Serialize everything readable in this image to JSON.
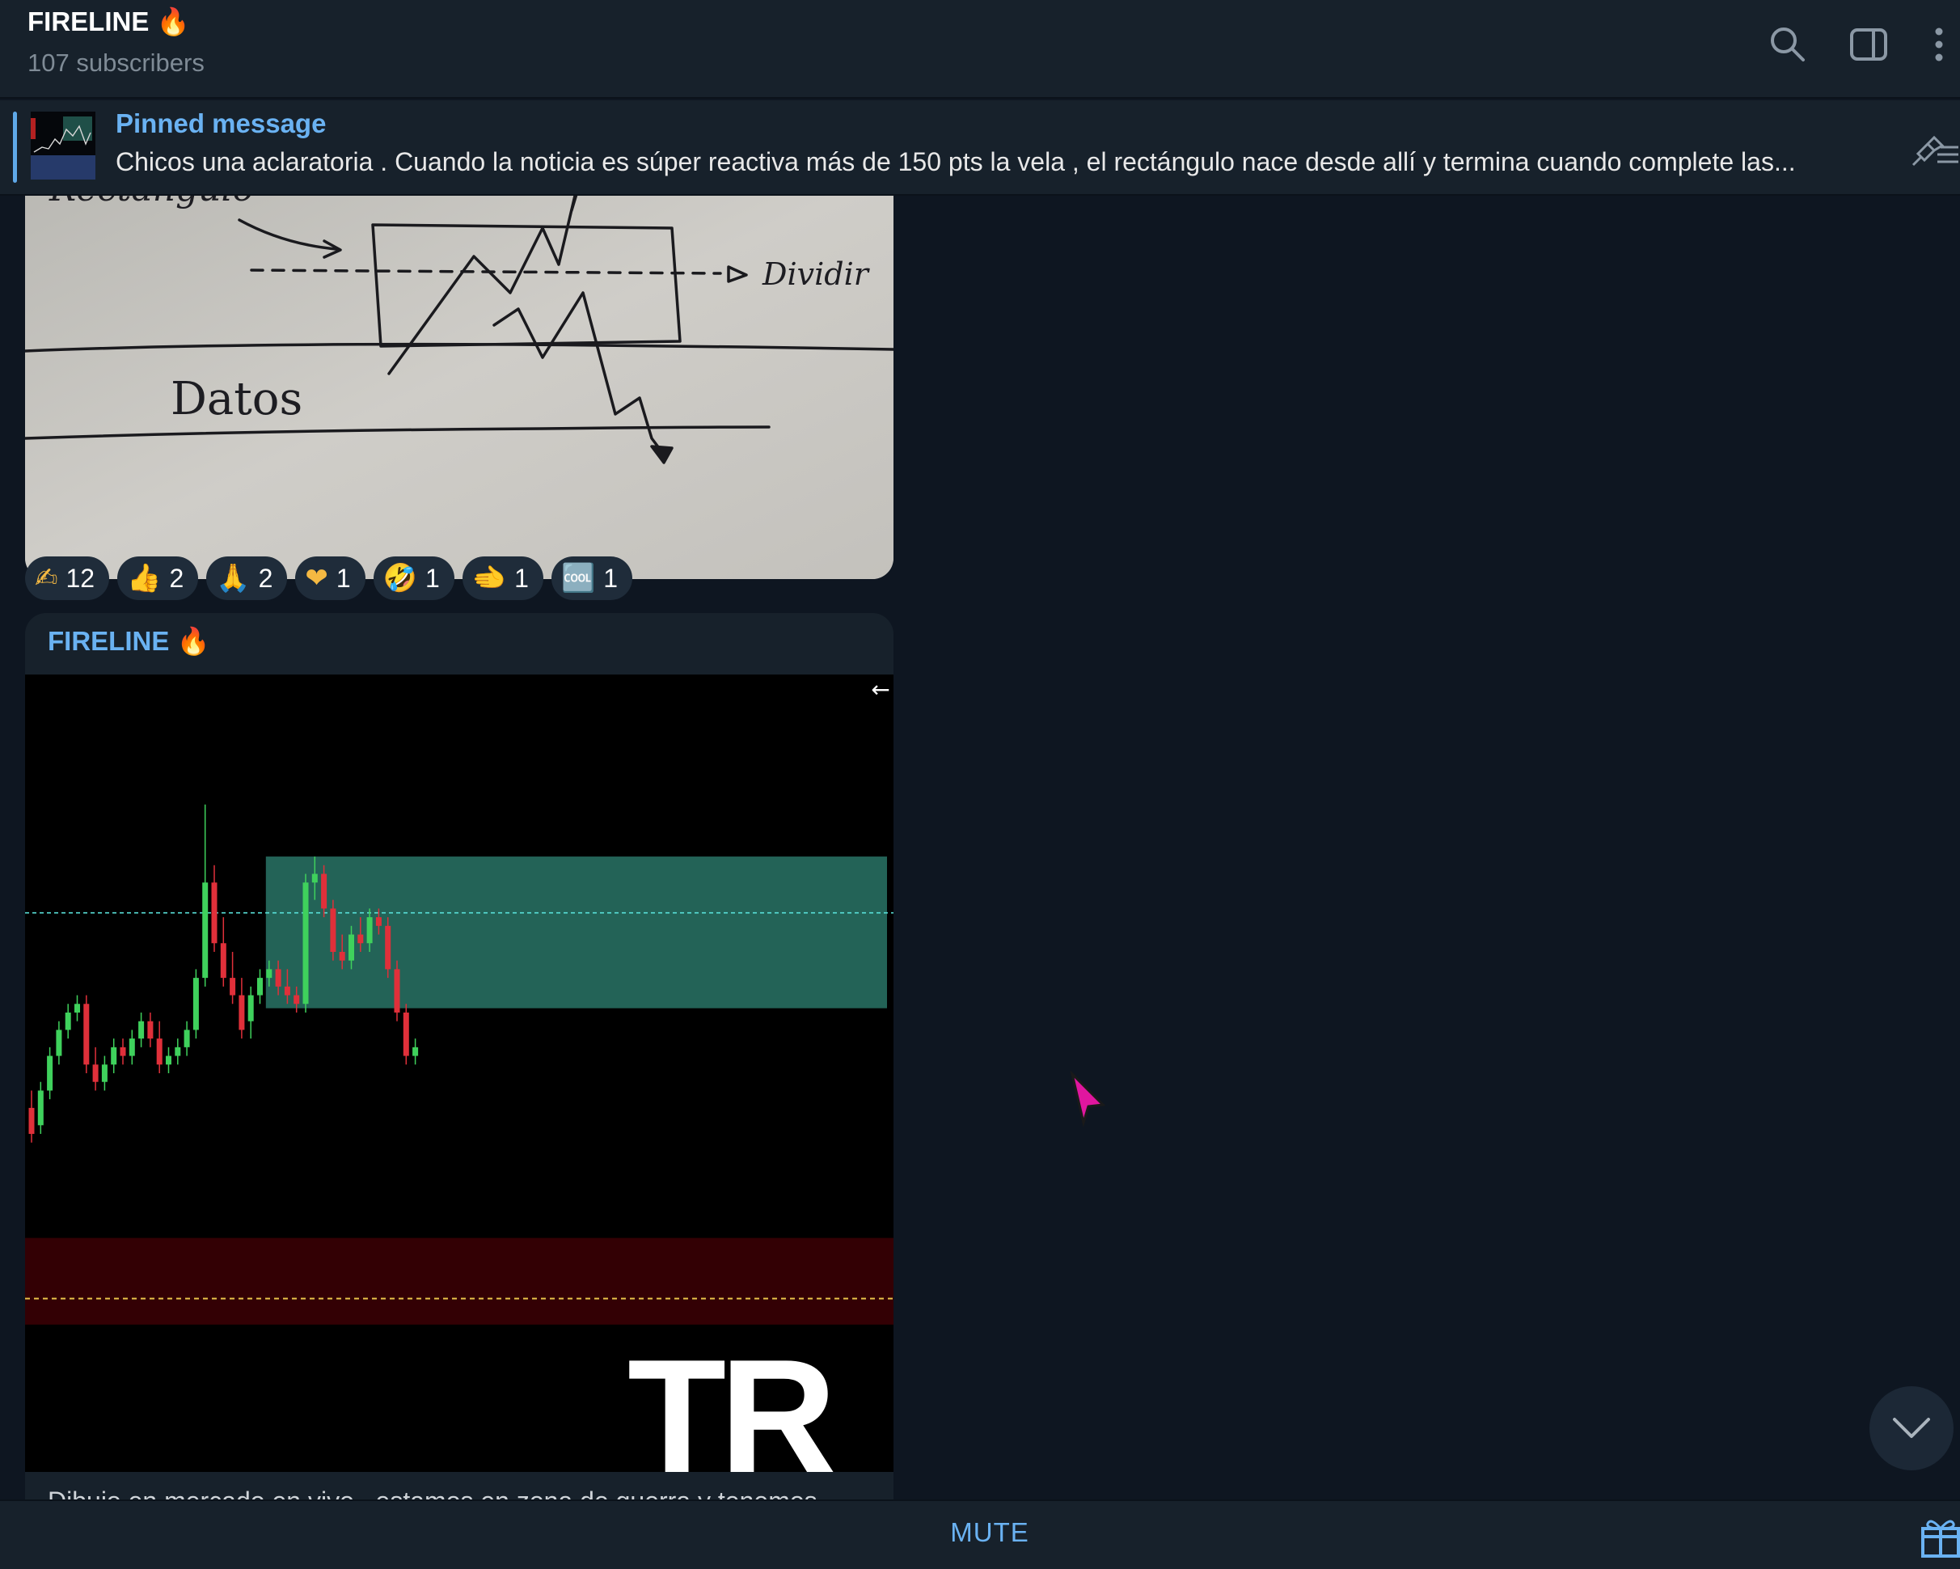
{
  "channel": {
    "title": "FIRELINE 🔥",
    "subscribers": "107 subscribers"
  },
  "header_icons": [
    "search-icon",
    "sidebar-toggle-icon",
    "more-vertical-icon"
  ],
  "pinned": {
    "label": "Pinned message",
    "text": "Chicos una aclaratoria .  Cuando la noticia es súper reactiva más de 150 pts la vela , el rectángulo nace desde allí y termina cuando complete las..."
  },
  "photo_sketch": {
    "word_rectangle": "Rectangulo",
    "word_dividir": "Dividir",
    "word_datos": "Datos"
  },
  "reactions": [
    {
      "emoji": "✍",
      "count": "12"
    },
    {
      "emoji": "👍",
      "count": "2"
    },
    {
      "emoji": "🙏",
      "count": "2"
    },
    {
      "emoji": "❤",
      "count": "1"
    },
    {
      "emoji": "🤣",
      "count": "1"
    },
    {
      "emoji": "🫲",
      "count": "1"
    },
    {
      "emoji": "🆒",
      "count": "1"
    }
  ],
  "message": {
    "author": "FIRELINE 🔥",
    "caption": "Dibujo en mercado en vivo , estamos en zona de guerra y tenemos ...",
    "watermark": "TR",
    "back_arrow": "←"
  },
  "chart_data": {
    "type": "candlestick",
    "title": "",
    "candles": [
      {
        "o": 62,
        "h": 64,
        "l": 58,
        "c": 59
      },
      {
        "o": 60,
        "h": 65,
        "l": 59,
        "c": 64
      },
      {
        "o": 64,
        "h": 69,
        "l": 63,
        "c": 68
      },
      {
        "o": 68,
        "h": 72,
        "l": 67,
        "c": 71
      },
      {
        "o": 71,
        "h": 74,
        "l": 70,
        "c": 73
      },
      {
        "o": 73,
        "h": 75,
        "l": 72,
        "c": 74
      },
      {
        "o": 74,
        "h": 75,
        "l": 66,
        "c": 67
      },
      {
        "o": 67,
        "h": 69,
        "l": 64,
        "c": 65
      },
      {
        "o": 65,
        "h": 68,
        "l": 64,
        "c": 67
      },
      {
        "o": 67,
        "h": 70,
        "l": 66,
        "c": 69
      },
      {
        "o": 69,
        "h": 70,
        "l": 67,
        "c": 68
      },
      {
        "o": 68,
        "h": 71,
        "l": 67,
        "c": 70
      },
      {
        "o": 70,
        "h": 73,
        "l": 69,
        "c": 72
      },
      {
        "o": 72,
        "h": 73,
        "l": 69,
        "c": 70
      },
      {
        "o": 70,
        "h": 72,
        "l": 66,
        "c": 67
      },
      {
        "o": 67,
        "h": 69,
        "l": 66,
        "c": 68
      },
      {
        "o": 68,
        "h": 70,
        "l": 67,
        "c": 69
      },
      {
        "o": 69,
        "h": 72,
        "l": 68,
        "c": 71
      },
      {
        "o": 71,
        "h": 78,
        "l": 70,
        "c": 77
      },
      {
        "o": 77,
        "h": 97,
        "l": 76,
        "c": 88
      },
      {
        "o": 88,
        "h": 90,
        "l": 80,
        "c": 81
      },
      {
        "o": 81,
        "h": 84,
        "l": 76,
        "c": 77
      },
      {
        "o": 77,
        "h": 80,
        "l": 74,
        "c": 75
      },
      {
        "o": 75,
        "h": 77,
        "l": 70,
        "c": 71
      },
      {
        "o": 72,
        "h": 76,
        "l": 70,
        "c": 75
      },
      {
        "o": 75,
        "h": 78,
        "l": 74,
        "c": 77
      },
      {
        "o": 77,
        "h": 79,
        "l": 76,
        "c": 78
      },
      {
        "o": 78,
        "h": 79,
        "l": 75,
        "c": 76
      },
      {
        "o": 76,
        "h": 78,
        "l": 74,
        "c": 75
      },
      {
        "o": 75,
        "h": 76,
        "l": 73,
        "c": 74
      },
      {
        "o": 74,
        "h": 89,
        "l": 73,
        "c": 88
      },
      {
        "o": 88,
        "h": 91,
        "l": 86,
        "c": 89
      },
      {
        "o": 89,
        "h": 90,
        "l": 84,
        "c": 85
      },
      {
        "o": 85,
        "h": 86,
        "l": 79,
        "c": 80
      },
      {
        "o": 80,
        "h": 82,
        "l": 78,
        "c": 79
      },
      {
        "o": 79,
        "h": 83,
        "l": 78,
        "c": 82
      },
      {
        "o": 82,
        "h": 84,
        "l": 80,
        "c": 81
      },
      {
        "o": 81,
        "h": 85,
        "l": 80,
        "c": 84
      },
      {
        "o": 84,
        "h": 85,
        "l": 82,
        "c": 83
      },
      {
        "o": 83,
        "h": 84,
        "l": 77,
        "c": 78
      },
      {
        "o": 78,
        "h": 79,
        "l": 72,
        "c": 73
      },
      {
        "o": 73,
        "h": 74,
        "l": 67,
        "c": 68
      },
      {
        "o": 68,
        "h": 70,
        "l": 67,
        "c": 69
      }
    ],
    "zone_green": [
      73.5,
      91
    ],
    "dashed_level_cyan": 84.5,
    "zone_red": [
      37,
      47
    ],
    "dashed_level_yellow": 40,
    "ylim": [
      20,
      112
    ],
    "colors": {
      "up": "#3fd15c",
      "down": "#e0303a",
      "zone_green": "#266b5e",
      "zone_red": "#330004",
      "cyan": "#58e0d8",
      "yellow": "#e8c34a"
    }
  },
  "bottom": {
    "mute_label": "MUTE"
  }
}
